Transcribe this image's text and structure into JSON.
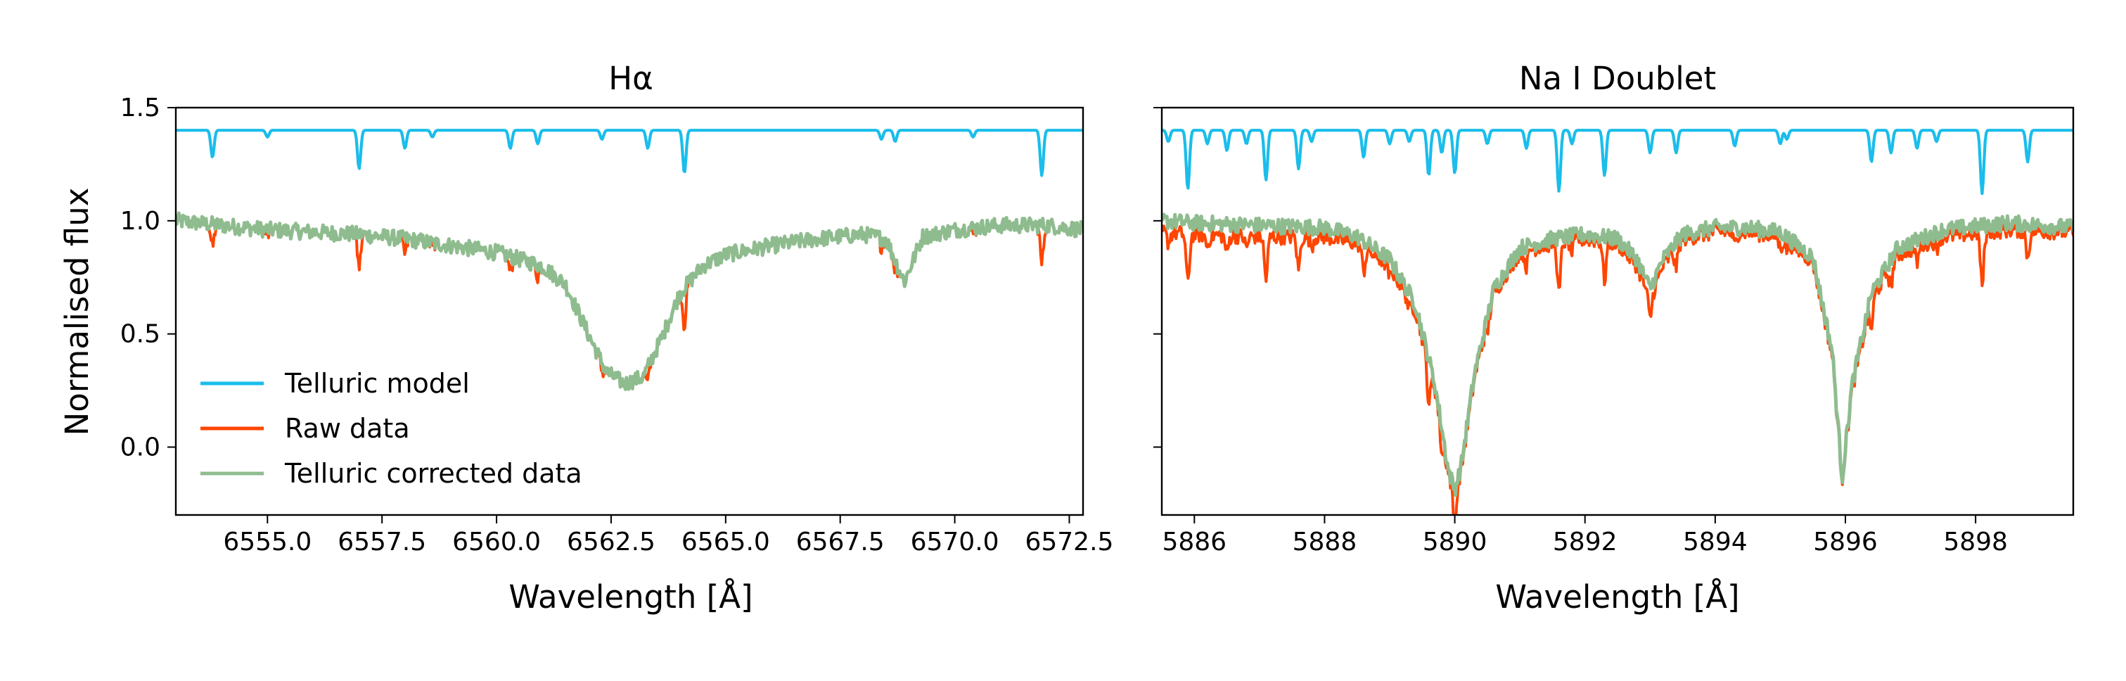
{
  "colors": {
    "telluric": "#1ABDEB",
    "raw": "#FF4500",
    "corrected": "#8FBC8F",
    "axis": "#000000"
  },
  "ylabel": "Normalised flux",
  "legend": {
    "placement": "lower-left",
    "entries": [
      {
        "label": "Telluric model",
        "color": "#1ABDEB"
      },
      {
        "label": "Raw data",
        "color": "#FF4500"
      },
      {
        "label": "Telluric corrected data",
        "color": "#8FBC8F"
      }
    ]
  },
  "chart_data": [
    {
      "type": "line",
      "title": "Hα",
      "xlabel": "Wavelength [Å]",
      "ylabel": "Normalised flux",
      "xlim": [
        6553.0,
        6572.8
      ],
      "ylim": [
        -0.3,
        1.5
      ],
      "xticks": [
        6555.0,
        6557.5,
        6560.0,
        6562.5,
        6565.0,
        6567.5,
        6570.0,
        6572.5
      ],
      "xtick_labels": [
        "6555.0",
        "6557.5",
        "6560.0",
        "6562.5",
        "6565.0",
        "6567.5",
        "6570.0",
        "6572.5"
      ],
      "yticks": [
        0.0,
        0.5,
        1.0,
        1.5
      ],
      "ytick_labels": [
        "0.0",
        "0.5",
        "1.0",
        "1.5"
      ],
      "grid": false,
      "series": [
        {
          "name": "Telluric model",
          "baseline": 1.4,
          "lines": [
            [
              6553.8,
              0.12
            ],
            [
              6555.0,
              0.03
            ],
            [
              6557.0,
              0.17
            ],
            [
              6558.0,
              0.08
            ],
            [
              6558.6,
              0.03
            ],
            [
              6560.3,
              0.08
            ],
            [
              6560.9,
              0.06
            ],
            [
              6562.3,
              0.04
            ],
            [
              6563.3,
              0.08
            ],
            [
              6564.1,
              0.19
            ],
            [
              6568.4,
              0.04
            ],
            [
              6568.7,
              0.05
            ],
            [
              6570.4,
              0.03
            ],
            [
              6571.9,
              0.2
            ]
          ]
        },
        {
          "name": "Raw data",
          "x": [
            6553.0,
            6554.0,
            6555.0,
            6556.0,
            6557.0,
            6558.0,
            6559.0,
            6560.0,
            6561.0,
            6561.5,
            6562.0,
            6562.4,
            6562.8,
            6563.2,
            6563.6,
            6564.0,
            6564.5,
            6565.0,
            6566.0,
            6567.0,
            6568.0,
            6568.5,
            6568.9,
            6569.3,
            6570.0,
            6571.0,
            6572.0,
            6572.8
          ],
          "values": [
            1.0,
            0.98,
            0.96,
            0.95,
            0.94,
            0.92,
            0.89,
            0.86,
            0.8,
            0.72,
            0.5,
            0.33,
            0.28,
            0.31,
            0.48,
            0.68,
            0.8,
            0.85,
            0.89,
            0.92,
            0.94,
            0.92,
            0.73,
            0.93,
            0.96,
            0.98,
            0.98,
            0.96
          ]
        },
        {
          "name": "Telluric corrected data",
          "x": [
            6553.0,
            6554.0,
            6555.0,
            6556.0,
            6557.0,
            6558.0,
            6559.0,
            6560.0,
            6561.0,
            6561.5,
            6562.0,
            6562.4,
            6562.8,
            6563.2,
            6563.6,
            6564.0,
            6564.5,
            6565.0,
            6566.0,
            6567.0,
            6568.0,
            6568.5,
            6568.9,
            6569.3,
            6570.0,
            6571.0,
            6572.0,
            6572.8
          ],
          "values": [
            1.0,
            0.98,
            0.96,
            0.95,
            0.94,
            0.92,
            0.89,
            0.86,
            0.8,
            0.72,
            0.5,
            0.33,
            0.28,
            0.31,
            0.48,
            0.68,
            0.8,
            0.85,
            0.89,
            0.92,
            0.94,
            0.92,
            0.73,
            0.93,
            0.96,
            0.98,
            0.98,
            0.96
          ]
        }
      ]
    },
    {
      "type": "line",
      "title": "Na I Doublet",
      "xlabel": "Wavelength [Å]",
      "xlim": [
        5885.5,
        5899.5
      ],
      "ylim": [
        -0.3,
        1.5
      ],
      "xticks": [
        5886,
        5888,
        5890,
        5892,
        5894,
        5896,
        5898
      ],
      "xtick_labels": [
        "5886",
        "5888",
        "5890",
        "5892",
        "5894",
        "5896",
        "5898"
      ],
      "yticks": [
        0.0,
        0.5,
        1.0,
        1.5
      ],
      "grid": false,
      "series": [
        {
          "name": "Telluric model",
          "baseline": 1.4,
          "lines": [
            [
              5885.6,
              0.05
            ],
            [
              5885.9,
              0.26
            ],
            [
              5886.2,
              0.06
            ],
            [
              5886.5,
              0.09
            ],
            [
              5886.8,
              0.06
            ],
            [
              5887.1,
              0.22
            ],
            [
              5887.6,
              0.17
            ],
            [
              5887.8,
              0.05
            ],
            [
              5888.6,
              0.12
            ],
            [
              5889.0,
              0.06
            ],
            [
              5889.3,
              0.05
            ],
            [
              5889.6,
              0.2
            ],
            [
              5889.8,
              0.1
            ],
            [
              5890.0,
              0.19
            ],
            [
              5890.5,
              0.06
            ],
            [
              5891.1,
              0.08
            ],
            [
              5891.6,
              0.27
            ],
            [
              5891.8,
              0.06
            ],
            [
              5892.3,
              0.2
            ],
            [
              5893.0,
              0.1
            ],
            [
              5893.4,
              0.1
            ],
            [
              5894.3,
              0.07
            ],
            [
              5895.0,
              0.06
            ],
            [
              5895.1,
              0.04
            ],
            [
              5896.4,
              0.14
            ],
            [
              5896.7,
              0.1
            ],
            [
              5897.1,
              0.08
            ],
            [
              5897.4,
              0.05
            ],
            [
              5898.1,
              0.28
            ],
            [
              5898.8,
              0.14
            ]
          ]
        },
        {
          "name": "Raw data",
          "x": [
            5885.5,
            5886.0,
            5887.0,
            5888.0,
            5888.5,
            5889.0,
            5889.4,
            5889.7,
            5889.9,
            5890.0,
            5890.1,
            5890.3,
            5890.6,
            5891.0,
            5891.5,
            5892.0,
            5892.5,
            5892.8,
            5893.0,
            5893.2,
            5893.5,
            5894.0,
            5894.5,
            5895.0,
            5895.5,
            5895.8,
            5895.95,
            5896.1,
            5896.4,
            5896.8,
            5897.5,
            5898.5,
            5899.5
          ],
          "values": [
            0.95,
            0.94,
            0.93,
            0.93,
            0.9,
            0.8,
            0.6,
            0.25,
            -0.12,
            -0.2,
            -0.1,
            0.3,
            0.68,
            0.86,
            0.9,
            0.92,
            0.9,
            0.8,
            0.65,
            0.8,
            0.92,
            0.95,
            0.95,
            0.93,
            0.82,
            0.4,
            -0.15,
            0.25,
            0.65,
            0.85,
            0.93,
            0.96,
            0.95
          ]
        },
        {
          "name": "Telluric corrected data",
          "x": [
            5885.5,
            5886.0,
            5887.0,
            5888.0,
            5888.5,
            5889.0,
            5889.4,
            5889.7,
            5889.9,
            5890.0,
            5890.1,
            5890.3,
            5890.6,
            5891.0,
            5891.5,
            5892.0,
            5892.5,
            5892.8,
            5893.0,
            5893.2,
            5893.5,
            5894.0,
            5894.5,
            5895.0,
            5895.5,
            5895.8,
            5895.95,
            5896.1,
            5896.4,
            5896.8,
            5897.5,
            5898.5,
            5899.5
          ],
          "values": [
            1.0,
            0.99,
            0.98,
            0.97,
            0.93,
            0.83,
            0.63,
            0.27,
            -0.1,
            -0.19,
            -0.08,
            0.32,
            0.7,
            0.88,
            0.92,
            0.94,
            0.92,
            0.83,
            0.7,
            0.83,
            0.94,
            0.97,
            0.97,
            0.95,
            0.84,
            0.42,
            -0.14,
            0.27,
            0.68,
            0.88,
            0.96,
            0.99,
            0.97
          ]
        }
      ]
    }
  ]
}
